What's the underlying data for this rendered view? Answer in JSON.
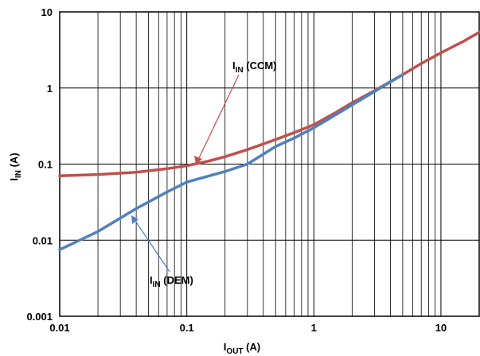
{
  "chart_data": {
    "type": "line",
    "x_scale": "log",
    "y_scale": "log",
    "xlim": [
      0.01,
      20
    ],
    "ylim": [
      0.001,
      10
    ],
    "grid": true,
    "x_ticks": [
      "0.01",
      "0.1",
      "1",
      "10"
    ],
    "y_ticks": [
      "10",
      "1",
      "0.1",
      "0.01",
      "0.001"
    ],
    "xlabel": {
      "main": "I",
      "sub": "OUT",
      "unit": " (A)"
    },
    "ylabel": {
      "main": "I",
      "sub": "IN",
      "unit": " (A)"
    },
    "series": [
      {
        "name": "IN (CCM)",
        "label_main": "I",
        "label_sub": "IN",
        "label_rest": " (CCM)",
        "color": "#c0504d",
        "x": [
          0.01,
          0.02,
          0.04,
          0.07,
          0.1,
          0.15,
          0.2,
          0.3,
          0.5,
          0.7,
          1.0,
          1.5,
          2.0,
          3.0,
          5.0,
          7.0,
          10.0,
          15.0,
          20.0
        ],
        "y": [
          0.07,
          0.073,
          0.078,
          0.087,
          0.095,
          0.11,
          0.125,
          0.155,
          0.21,
          0.26,
          0.33,
          0.48,
          0.64,
          0.92,
          1.5,
          2.1,
          2.9,
          4.1,
          5.4
        ]
      },
      {
        "name": "IN (DEM)",
        "label_main": "I",
        "label_sub": "IN",
        "label_rest": " (DEM)",
        "color": "#4f81bd",
        "x": [
          0.01,
          0.02,
          0.04,
          0.07,
          0.1,
          0.15,
          0.2,
          0.3,
          0.5,
          0.7,
          1.0,
          1.5,
          2.0,
          3.0,
          5.0
        ],
        "y": [
          0.0075,
          0.013,
          0.026,
          0.043,
          0.058,
          0.07,
          0.08,
          0.1,
          0.17,
          0.22,
          0.3,
          0.45,
          0.6,
          0.9,
          1.5
        ]
      }
    ]
  }
}
